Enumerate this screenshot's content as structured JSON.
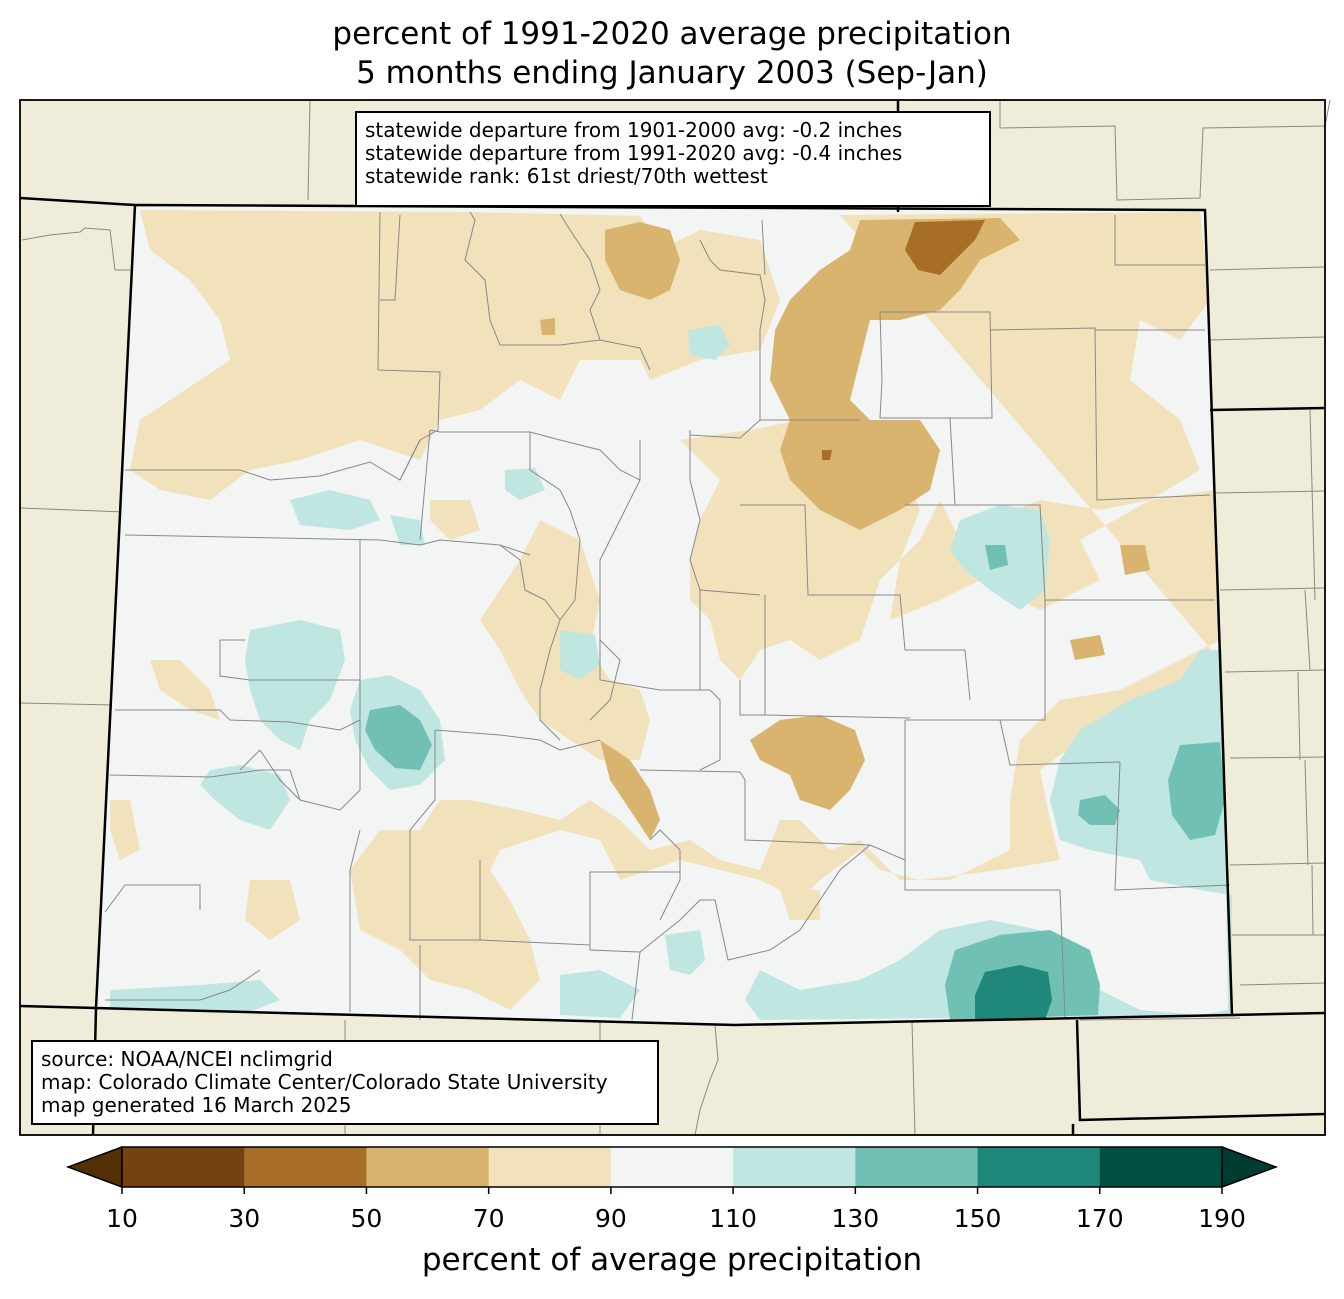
{
  "title": {
    "line1": "percent of 1991-2020 average precipitation",
    "line2": "5 months ending January 2003 (Sep-Jan)"
  },
  "stats_box": {
    "line1": "statewide departure from 1901-2000 avg: -0.2 inches",
    "line2": "statewide departure from 1991-2020 avg: -0.4 inches",
    "line3": "statewide rank: 61st driest/70th wettest"
  },
  "source_box": {
    "line1": "source: NOAA/NCEI nclimgrid",
    "line2": "map: Colorado Climate Center/Colorado State University",
    "line3": "map generated 16 March 2025"
  },
  "colorbar": {
    "label": "percent of average precipitation",
    "ticks": [
      "10",
      "30",
      "50",
      "70",
      "90",
      "110",
      "130",
      "150",
      "170",
      "190"
    ],
    "bins": [
      {
        "range": "10-30",
        "color": "#734210"
      },
      {
        "range": "30-50",
        "color": "#a86e28"
      },
      {
        "range": "50-70",
        "color": "#d8b46e"
      },
      {
        "range": "70-90",
        "color": "#f2e2bb"
      },
      {
        "range": "90-110",
        "color": "#f3f5f4"
      },
      {
        "range": "110-130",
        "color": "#bfe6e1"
      },
      {
        "range": "130-150",
        "color": "#70c1b4"
      },
      {
        "range": "150-170",
        "color": "#20877b"
      },
      {
        "range": "170-190",
        "color": "#004f43"
      }
    ],
    "under_color": "#543005",
    "over_color": "#003c30"
  },
  "colors": {
    "surrounding_land": "#efedda",
    "county_lines": "#888888",
    "state_lines": "#000000"
  }
}
